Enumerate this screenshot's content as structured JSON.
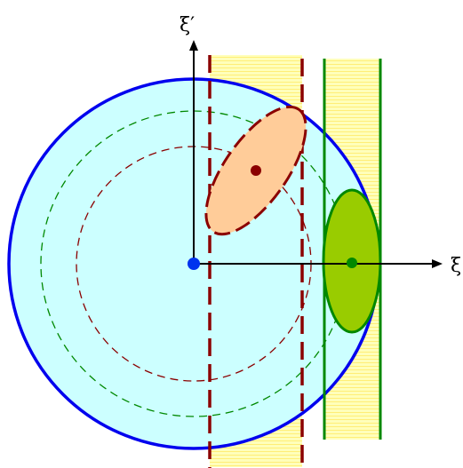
{
  "labels": {
    "vertical_axis": "ξ′",
    "horizontal_axis": "ξ"
  },
  "colors": {
    "outer_circle_fill": "#ccffff",
    "outer_circle_stroke": "#0000ee",
    "center_dot": "#0033ee",
    "band_fill": "#ffffbb",
    "band_stripe": "#ffee77",
    "dark_red": "#8b0000",
    "orange_ellipse_fill": "#ffcc99",
    "green": "#008800",
    "green_ellipse_fill": "#99cc00",
    "axis": "#000000"
  }
}
